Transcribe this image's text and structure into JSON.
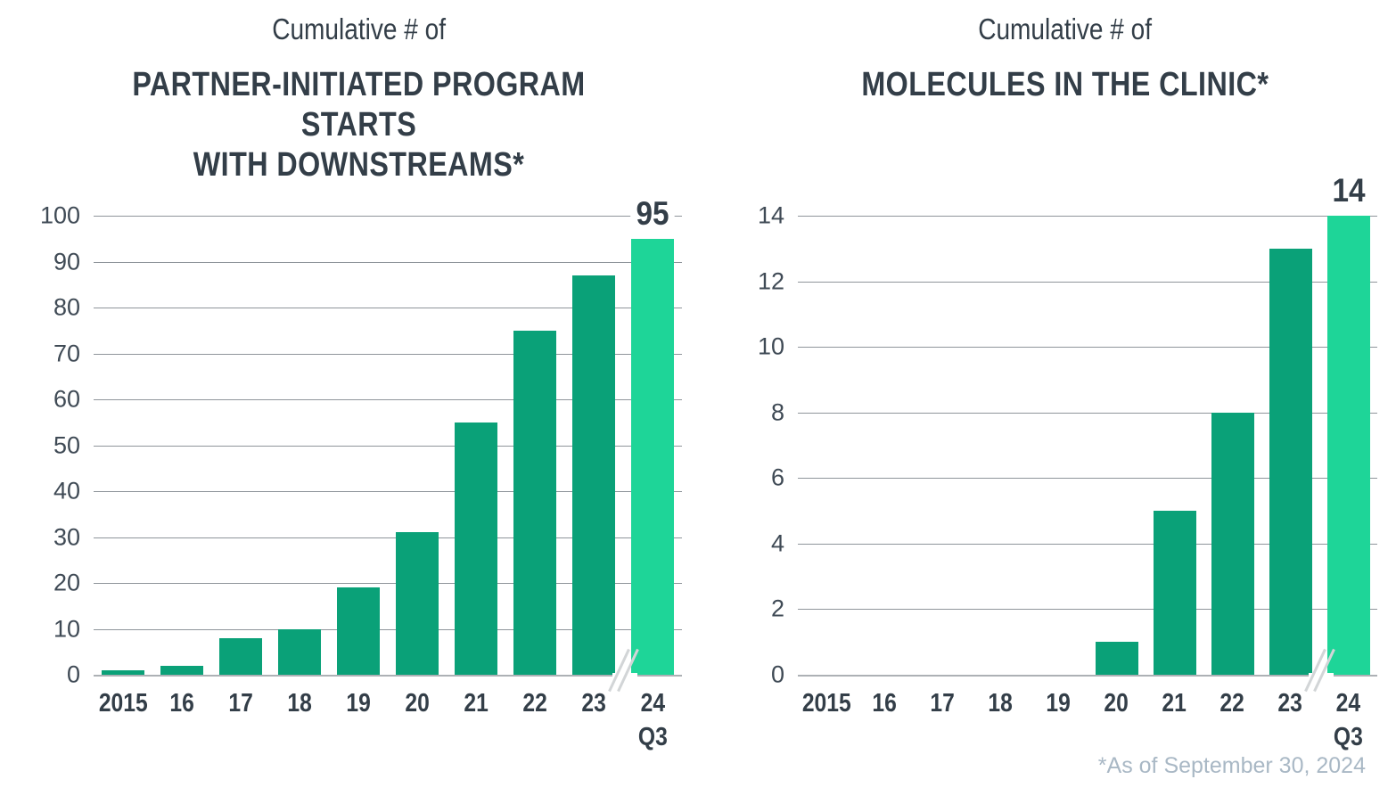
{
  "colors": {
    "bar": "#0aa178",
    "bar_highlight": "#1ed598",
    "text_dark": "#333e48",
    "tick_label": "#3f4a55",
    "gridline": "#8f959b",
    "axis_line": "#adb1b5",
    "footnote": "#a9b8c5",
    "axis_break": "#d2d5d7"
  },
  "footnote": "*As of September 30, 2024",
  "chart_data": [
    {
      "type": "bar",
      "title_line1": "Cumulative # of",
      "title_line2": "PARTNER-INITIATED PROGRAM STARTS\nWITH DOWNSTREAMS*",
      "categories": [
        "2015",
        "16",
        "17",
        "18",
        "19",
        "20",
        "21",
        "22",
        "23",
        "24\nQ3"
      ],
      "values": [
        1,
        2,
        8,
        10,
        19,
        31,
        55,
        75,
        87,
        95
      ],
      "ylim": [
        0,
        100
      ],
      "ytick_step": 10,
      "yticks": [
        0,
        10,
        20,
        30,
        40,
        50,
        60,
        70,
        80,
        90,
        100
      ],
      "last_bar_label": "95",
      "highlight_last": true,
      "axis_break_before_last": true,
      "grid": true,
      "legend": "none",
      "xlabel": "",
      "ylabel": ""
    },
    {
      "type": "bar",
      "title_line1": "Cumulative # of",
      "title_line2": "MOLECULES IN THE CLINIC*",
      "categories": [
        "2015",
        "16",
        "17",
        "18",
        "19",
        "20",
        "21",
        "22",
        "23",
        "24\nQ3"
      ],
      "values": [
        0,
        0,
        0,
        0,
        0,
        1,
        5,
        8,
        13,
        14
      ],
      "ylim": [
        0,
        14
      ],
      "ytick_step": 2,
      "yticks": [
        0,
        2,
        4,
        6,
        8,
        10,
        12,
        14
      ],
      "last_bar_label": "14",
      "highlight_last": true,
      "axis_break_before_last": true,
      "grid": true,
      "legend": "none",
      "xlabel": "",
      "ylabel": ""
    }
  ]
}
